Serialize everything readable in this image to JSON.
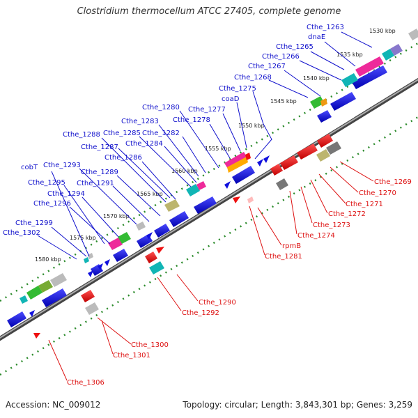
{
  "title": "Clostridium thermocellum ATCC 27405, complete genome",
  "accession": "Accession: NC_009012",
  "topology": "Topology: circular; Length: 3,843,301 bp; Genes: 3,259",
  "colors": {
    "forward_label": "#1010cc",
    "reverse_label": "#dd1010",
    "cds_forward": "#1010dd",
    "cds_reverse": "#ee1010",
    "backbone": "#777777",
    "tick": "#2a8a2a"
  },
  "kbp_labels": [
    "1530 kbp",
    "1535 kbp",
    "1540 kbp",
    "1545 kbp",
    "1550 kbp",
    "1555 kbp",
    "1560 kbp",
    "1565 kbp",
    "1570 kbp",
    "1575 kbp",
    "1580 kbp"
  ],
  "forward_genes": [
    "Cthe_1263",
    "dnaE",
    "Cthe_1265",
    "Cthe_1266",
    "Cthe_1267",
    "Cthe_1268",
    "Cthe_1275",
    "coaD",
    "Cthe_1277",
    "Cthe_1278",
    "Cthe_1280",
    "Cthe_1283",
    "Cthe_1282",
    "Cthe_1285",
    "Cthe_1284",
    "Cthe_1288",
    "Cthe_1287",
    "Cthe_1286",
    "cobT",
    "Cthe_1293",
    "Cthe_1289",
    "Cthe_1295",
    "Cthe_1291",
    "Cthe_1294",
    "Cthe_1296",
    "Cthe_1299",
    "Cthe_1302"
  ],
  "reverse_genes": [
    "Cthe_1269",
    "Cthe_1270",
    "Cthe_1271",
    "Cthe_1272",
    "Cthe_1273",
    "Cthe_1274",
    "rpmB",
    "Cthe_1281",
    "Cthe_1290",
    "Cthe_1292",
    "Cthe_1300",
    "Cthe_1301",
    "Cthe_1306"
  ]
}
